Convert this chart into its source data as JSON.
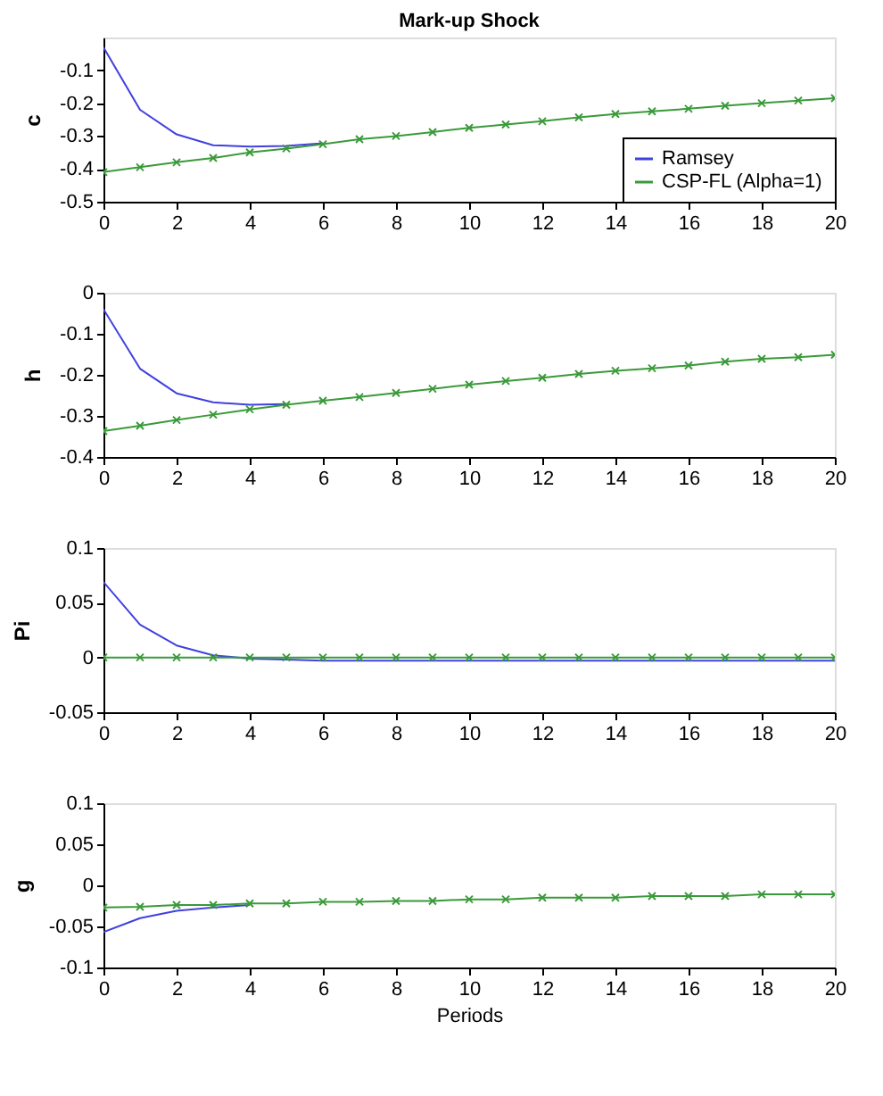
{
  "chart_data": [
    {
      "type": "line",
      "title": "Mark-up Shock",
      "ylabel": "c",
      "x": [
        0,
        1,
        2,
        3,
        4,
        5,
        6,
        7,
        8,
        9,
        10,
        11,
        12,
        13,
        14,
        15,
        16,
        17,
        18,
        19,
        20
      ],
      "xlim": [
        0,
        20
      ],
      "xticks": [
        0,
        2,
        4,
        6,
        8,
        10,
        12,
        14,
        16,
        18,
        20
      ],
      "ylim": [
        -0.5,
        0
      ],
      "yticks": [
        -0.5,
        -0.4,
        -0.3,
        -0.2,
        -0.1
      ],
      "grid": false,
      "legend": "bottom right",
      "line_style": "solid",
      "series": [
        {
          "name": "Ramsey",
          "color": "#4040e0",
          "marker": "none",
          "values": [
            -0.03,
            -0.22,
            -0.295,
            -0.328,
            -0.332,
            -0.33,
            -0.322,
            null,
            null,
            null,
            null,
            null,
            null,
            null,
            null,
            null,
            null,
            null,
            null,
            null,
            null
          ]
        },
        {
          "name": "CSP-FL (Alpha=1)",
          "color": "#3a9a3a",
          "marker": "cross",
          "values": [
            -0.41,
            -0.395,
            -0.38,
            -0.367,
            -0.35,
            -0.338,
            -0.325,
            -0.31,
            -0.3,
            -0.288,
            -0.275,
            -0.265,
            -0.255,
            -0.243,
            -0.233,
            -0.225,
            -0.217,
            -0.208,
            -0.2,
            -0.192,
            -0.185
          ]
        }
      ]
    },
    {
      "type": "line",
      "ylabel": "h",
      "x": [
        0,
        1,
        2,
        3,
        4,
        5,
        6,
        7,
        8,
        9,
        10,
        11,
        12,
        13,
        14,
        15,
        16,
        17,
        18,
        19,
        20
      ],
      "xlim": [
        0,
        20
      ],
      "xticks": [
        0,
        2,
        4,
        6,
        8,
        10,
        12,
        14,
        16,
        18,
        20
      ],
      "ylim": [
        -0.4,
        0
      ],
      "yticks": [
        -0.4,
        -0.3,
        -0.2,
        -0.1,
        0
      ],
      "grid": false,
      "legend": false,
      "line_style": "solid",
      "series": [
        {
          "color": "#4040e0",
          "marker": "none",
          "values": [
            -0.04,
            -0.185,
            -0.245,
            -0.267,
            -0.273,
            -0.271,
            null,
            null,
            null,
            null,
            null,
            null,
            null,
            null,
            null,
            null,
            null,
            null,
            null,
            null,
            null
          ]
        },
        {
          "color": "#3a9a3a",
          "marker": "cross",
          "values": [
            -0.337,
            -0.324,
            -0.31,
            -0.297,
            -0.284,
            -0.273,
            -0.263,
            -0.254,
            -0.244,
            -0.234,
            -0.224,
            -0.215,
            -0.207,
            -0.198,
            -0.19,
            -0.184,
            -0.177,
            -0.168,
            -0.161,
            -0.157,
            -0.151
          ]
        }
      ]
    },
    {
      "type": "line",
      "ylabel": "Pi",
      "x": [
        0,
        1,
        2,
        3,
        4,
        5,
        6,
        7,
        8,
        9,
        10,
        11,
        12,
        13,
        14,
        15,
        16,
        17,
        18,
        19,
        20
      ],
      "xlim": [
        0,
        20
      ],
      "xticks": [
        0,
        2,
        4,
        6,
        8,
        10,
        12,
        14,
        16,
        18,
        20
      ],
      "ylim": [
        -0.05,
        0.1
      ],
      "yticks": [
        -0.05,
        0,
        0.05,
        0.1
      ],
      "grid": false,
      "legend": false,
      "line_style": "solid",
      "series": [
        {
          "color": "#4040e0",
          "marker": "none",
          "values": [
            0.069,
            0.03,
            0.011,
            0.002,
            -0.001,
            -0.002,
            -0.003,
            -0.003,
            -0.003,
            -0.003,
            -0.003,
            -0.003,
            -0.003,
            -0.003,
            -0.003,
            -0.003,
            -0.003,
            -0.003,
            -0.003,
            -0.003,
            -0.003
          ]
        },
        {
          "color": "#3a9a3a",
          "marker": "cross",
          "values": [
            0,
            0,
            0,
            0,
            0,
            0,
            0,
            0,
            0,
            0,
            0,
            0,
            0,
            0,
            0,
            0,
            0,
            0,
            0,
            0,
            0
          ]
        }
      ]
    },
    {
      "type": "line",
      "ylabel": "g",
      "xlabel": "Periods",
      "x": [
        0,
        1,
        2,
        3,
        4,
        5,
        6,
        7,
        8,
        9,
        10,
        11,
        12,
        13,
        14,
        15,
        16,
        17,
        18,
        19,
        20
      ],
      "xlim": [
        0,
        20
      ],
      "xticks": [
        0,
        2,
        4,
        6,
        8,
        10,
        12,
        14,
        16,
        18,
        20
      ],
      "ylim": [
        -0.1,
        0.1
      ],
      "yticks": [
        -0.1,
        -0.05,
        0,
        0.05,
        0.1
      ],
      "grid": false,
      "legend": false,
      "line_style": "solid",
      "series": [
        {
          "color": "#4040e0",
          "marker": "none",
          "values": [
            -0.057,
            -0.04,
            -0.031,
            -0.027,
            -0.024,
            null,
            null,
            null,
            null,
            null,
            null,
            null,
            null,
            null,
            null,
            null,
            null,
            null,
            null,
            null,
            null
          ]
        },
        {
          "color": "#3a9a3a",
          "marker": "cross",
          "values": [
            -0.027,
            -0.026,
            -0.024,
            -0.024,
            -0.022,
            -0.022,
            -0.02,
            -0.02,
            -0.019,
            -0.019,
            -0.017,
            -0.017,
            -0.015,
            -0.015,
            -0.015,
            -0.013,
            -0.013,
            -0.013,
            -0.011,
            -0.011,
            -0.011
          ]
        }
      ]
    }
  ]
}
